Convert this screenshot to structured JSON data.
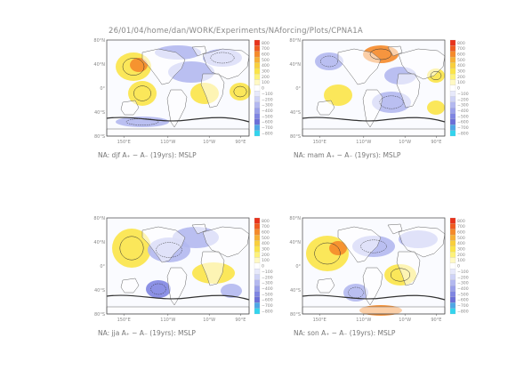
{
  "page": {
    "title": "26/01/04/home/dan/WORK/Experiments/NAforcing/Plots/CPNA1A"
  },
  "panels": [
    {
      "id": "djf",
      "caption": "NA: djf A₊ − A₋ (19yrs): MSLP"
    },
    {
      "id": "mam",
      "caption": "NA: mam A₊ − A₋ (19yrs): MSLP"
    },
    {
      "id": "jja",
      "caption": "NA: jja A₊ − A₋ (19yrs): MSLP"
    },
    {
      "id": "son",
      "caption": "NA: son A₊ − A₋ (19yrs): MSLP"
    }
  ],
  "axes": {
    "lat_ticks": [
      "80°N",
      "40°N",
      "0°",
      "40°S",
      "80°S"
    ],
    "lon_ticks": [
      "150°E",
      "110°W",
      "10°W",
      "90°E"
    ]
  },
  "colorbar": {
    "levels": [
      "800",
      "700",
      "600",
      "500",
      "400",
      "300",
      "200",
      "100",
      "0",
      "−100",
      "−200",
      "−300",
      "−400",
      "−500",
      "−600",
      "−700",
      "−800"
    ],
    "colors": [
      "#e8331c",
      "#f05a20",
      "#f58a2a",
      "#f7b034",
      "#f9cf3b",
      "#fbe448",
      "#fdf27a",
      "#fff9c4",
      "#ffffff",
      "#e7e9fb",
      "#cfd3f6",
      "#b3b8f0",
      "#9aa0ea",
      "#7f85e2",
      "#6a6fd8",
      "#4ea6e6",
      "#33d4ee"
    ]
  },
  "colors": {
    "land": "#ffffff",
    "positive": "#fde14a",
    "negative": "#a9aff0",
    "contour": "#333333"
  }
}
